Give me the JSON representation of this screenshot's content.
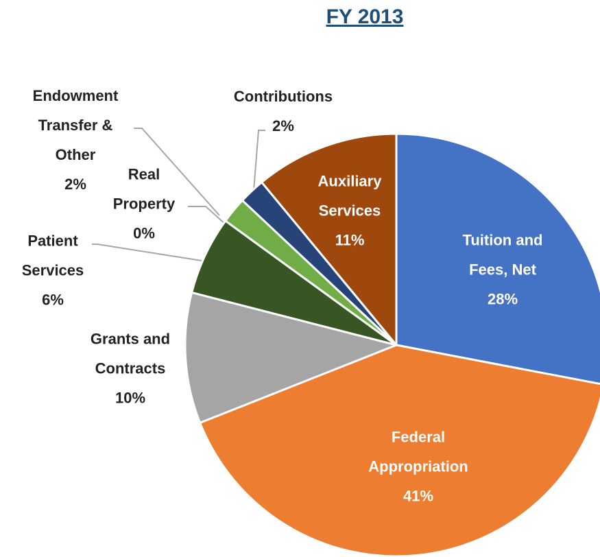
{
  "chart_data": {
    "type": "pie",
    "title": "FY 2013",
    "categories": [
      "Tuition and Fees, Net",
      "Federal Appropriation",
      "Grants and Contracts",
      "Patient Services",
      "Real Property",
      "Endowment Transfer & Other",
      "Contributions",
      "Auxiliary Services"
    ],
    "values": [
      28,
      41,
      10,
      6,
      0,
      2,
      2,
      11
    ],
    "value_labels": [
      "28%",
      "41%",
      "10%",
      "6%",
      "0%",
      "2%",
      "2%",
      "11%"
    ],
    "colors": [
      "#4472c4",
      "#ed7d31",
      "#a5a5a5",
      "#375623",
      "#ffc000",
      "#70ad47",
      "#264478",
      "#9e480e"
    ]
  }
}
